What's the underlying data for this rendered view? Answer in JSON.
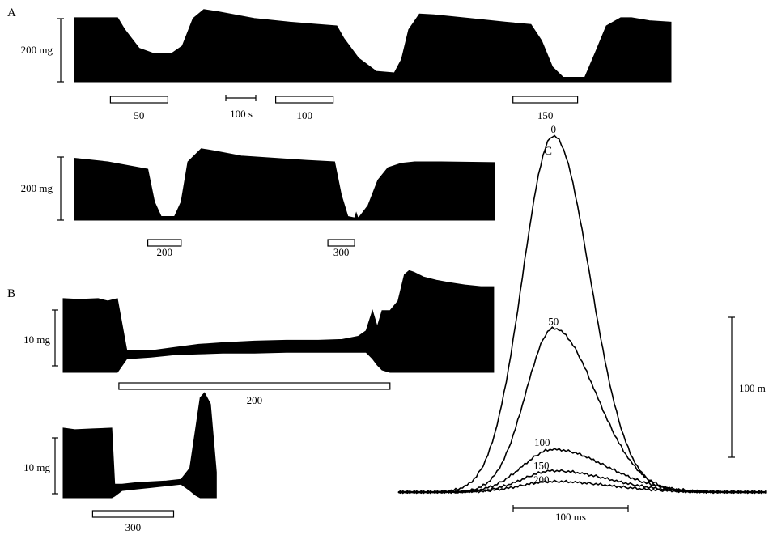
{
  "colors": {
    "ink": "#000000",
    "bar_fill": "#ffffff",
    "background": "#ffffff"
  },
  "panels": {
    "a": {
      "label": "A",
      "scale_label": "200 mg",
      "time_scale_label": "100 s"
    },
    "b": {
      "label": "B",
      "scale_label": "10 mg"
    },
    "c": {
      "label": "C",
      "scale_label": "100 m",
      "time_scale_label": "100 ms"
    }
  },
  "chart_data": [
    {
      "type": "area",
      "panel": "A",
      "row": 1,
      "scale_label": "200 mg",
      "time_scale_label": "100 s",
      "applications": [
        {
          "label": "50",
          "from": 0.1,
          "to": 0.26
        },
        {
          "label": "100",
          "from": 0.56,
          "to": 0.72
        },
        {
          "label": "150",
          "from": 1.22,
          "to": 1.4
        }
      ],
      "time": [
        0.0,
        0.12,
        0.14,
        0.18,
        0.22,
        0.27,
        0.3,
        0.33,
        0.36,
        0.4,
        0.5,
        0.6,
        0.73,
        0.75,
        0.79,
        0.84,
        0.89,
        0.91,
        0.93,
        0.96,
        1.0,
        1.1,
        1.2,
        1.27,
        1.3,
        1.33,
        1.36,
        1.42,
        1.45,
        1.48,
        1.52,
        1.55,
        1.6,
        1.66
      ],
      "tension": [
        0.86,
        0.86,
        0.7,
        0.45,
        0.38,
        0.38,
        0.48,
        0.85,
        0.97,
        0.94,
        0.85,
        0.8,
        0.75,
        0.58,
        0.32,
        0.14,
        0.12,
        0.3,
        0.7,
        0.91,
        0.9,
        0.85,
        0.8,
        0.77,
        0.55,
        0.2,
        0.06,
        0.06,
        0.4,
        0.75,
        0.86,
        0.86,
        0.82,
        0.8
      ]
    },
    {
      "type": "area",
      "panel": "A",
      "row": 2,
      "scale_label": "200 mg",
      "applications": [
        {
          "label": "200",
          "from": 0.22,
          "to": 0.32
        },
        {
          "label": "300",
          "from": 0.76,
          "to": 0.84
        }
      ],
      "time": [
        0.0,
        0.1,
        0.22,
        0.24,
        0.26,
        0.28,
        0.3,
        0.32,
        0.34,
        0.38,
        0.42,
        0.5,
        0.6,
        0.7,
        0.78,
        0.8,
        0.82,
        0.84,
        0.845,
        0.85,
        0.855,
        0.88,
        0.91,
        0.94,
        0.98,
        1.02,
        1.1,
        1.26
      ],
      "tension": [
        0.85,
        0.8,
        0.7,
        0.25,
        0.05,
        0.05,
        0.05,
        0.25,
        0.8,
        0.98,
        0.95,
        0.88,
        0.85,
        0.82,
        0.8,
        0.35,
        0.05,
        0.03,
        0.1,
        0.03,
        0.05,
        0.2,
        0.55,
        0.72,
        0.78,
        0.8,
        0.8,
        0.79
      ]
    },
    {
      "type": "area",
      "panel": "B",
      "row": 1,
      "scale_label": "10 mg",
      "applications": [
        {
          "label": "200",
          "from": 0.35,
          "to": 2.05
        }
      ],
      "time": [
        0.0,
        0.1,
        0.22,
        0.28,
        0.34,
        0.4,
        0.55,
        0.7,
        0.85,
        1.0,
        1.2,
        1.4,
        1.6,
        1.75,
        1.85,
        1.9,
        1.94,
        1.97,
        2.0,
        2.05,
        2.1,
        2.14,
        2.17,
        2.2,
        2.26,
        2.34,
        2.42,
        2.52,
        2.62,
        2.7
      ],
      "upper": [
        0.95,
        0.94,
        0.95,
        0.92,
        0.95,
        0.3,
        0.3,
        0.34,
        0.38,
        0.4,
        0.42,
        0.43,
        0.43,
        0.44,
        0.48,
        0.55,
        0.8,
        0.6,
        0.8,
        0.8,
        0.92,
        1.25,
        1.3,
        1.28,
        1.22,
        1.18,
        1.15,
        1.12,
        1.1,
        1.1
      ],
      "lower": [
        0.03,
        0.03,
        0.03,
        0.03,
        0.03,
        0.2,
        0.22,
        0.25,
        0.26,
        0.27,
        0.27,
        0.28,
        0.28,
        0.28,
        0.28,
        0.28,
        0.2,
        0.12,
        0.06,
        0.03,
        0.03,
        0.03,
        0.03,
        0.03,
        0.03,
        0.03,
        0.03,
        0.03,
        0.03,
        0.03
      ]
    },
    {
      "type": "area",
      "panel": "B",
      "row": 2,
      "scale_label": "10 mg",
      "applications": [
        {
          "label": "300",
          "from": 0.2,
          "to": 0.75
        }
      ],
      "time": [
        0.0,
        0.08,
        0.2,
        0.33,
        0.35,
        0.4,
        0.5,
        0.6,
        0.7,
        0.8,
        0.86,
        0.9,
        0.93,
        0.96,
        1.0,
        1.04
      ],
      "upper": [
        0.9,
        0.88,
        0.89,
        0.9,
        0.2,
        0.2,
        0.22,
        0.23,
        0.24,
        0.26,
        0.4,
        0.9,
        1.28,
        1.34,
        1.2,
        0.35
      ],
      "lower": [
        0.03,
        0.03,
        0.03,
        0.03,
        0.05,
        0.12,
        0.14,
        0.16,
        0.18,
        0.2,
        0.12,
        0.06,
        0.03,
        0.03,
        0.03,
        0.03
      ]
    },
    {
      "type": "line",
      "panel": "C",
      "scale_label": "100 m",
      "time_scale_label": "100 ms",
      "xlim": [
        -50,
        270
      ],
      "ylim": [
        0,
        1.1
      ],
      "series": [
        {
          "name": "0",
          "peak": 1.0,
          "peak_time": 85,
          "rise_width": 38,
          "decay_width": 45
        },
        {
          "name": "50",
          "peak": 0.46,
          "peak_time": 85,
          "rise_width": 34,
          "decay_width": 52
        },
        {
          "name": "100",
          "peak": 0.12,
          "peak_time": 85,
          "rise_width": 38,
          "decay_width": 65
        },
        {
          "name": "150",
          "peak": 0.06,
          "peak_time": 85,
          "rise_width": 38,
          "decay_width": 68
        },
        {
          "name": "200",
          "peak": 0.03,
          "peak_time": 85,
          "rise_width": 40,
          "decay_width": 70
        }
      ]
    }
  ]
}
